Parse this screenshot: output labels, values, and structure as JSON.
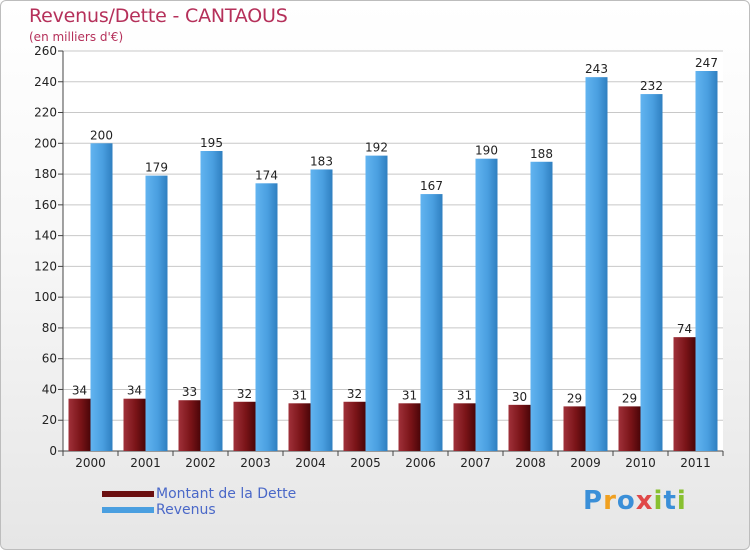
{
  "header": {
    "title": "Revenus/Dette - CANTAOUS",
    "subtitle": "(en milliers d'€)"
  },
  "legend": {
    "items": [
      {
        "label": "Montant de la Dette",
        "color": "#6b0f10"
      },
      {
        "label": "Revenus",
        "color": "#4a9fe0"
      }
    ]
  },
  "logo": {
    "letters": [
      "P",
      "r",
      "o",
      "x",
      "i",
      "t",
      "i"
    ],
    "colors": [
      "#3a8fd8",
      "#f0a020",
      "#3a8fd8",
      "#e04848",
      "#88c030",
      "#3a8fd8",
      "#88c030"
    ]
  },
  "chart_data": {
    "type": "bar",
    "categories": [
      "2000",
      "2001",
      "2002",
      "2003",
      "2004",
      "2005",
      "2006",
      "2007",
      "2008",
      "2009",
      "2010",
      "2011"
    ],
    "series": [
      {
        "name": "Montant de la Dette",
        "color": "#6b0f10",
        "values": [
          34,
          34,
          33,
          32,
          31,
          32,
          31,
          31,
          30,
          29,
          29,
          74
        ]
      },
      {
        "name": "Revenus",
        "color": "#4a9fe0",
        "values": [
          200,
          179,
          195,
          174,
          183,
          192,
          167,
          190,
          188,
          243,
          232,
          247
        ]
      }
    ],
    "ylim": [
      0,
      260
    ],
    "yticks": [
      0,
      20,
      40,
      60,
      80,
      100,
      120,
      140,
      160,
      180,
      200,
      220,
      240,
      260
    ],
    "grid": true,
    "title": "Revenus/Dette - CANTAOUS",
    "ylabel": "(en milliers d'€)"
  }
}
